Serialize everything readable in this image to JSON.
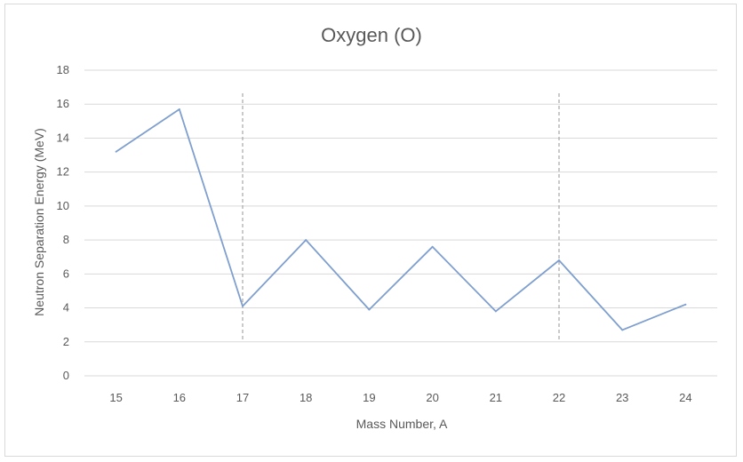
{
  "chart_data": {
    "type": "line",
    "title": "Oxygen (O)",
    "xlabel": "Mass Number, A",
    "ylabel": "Neutron Separation Energy (MeV)",
    "x": [
      15,
      16,
      17,
      18,
      19,
      20,
      21,
      22,
      23,
      24
    ],
    "series": [
      {
        "values": [
          13.2,
          15.7,
          4.1,
          8.0,
          3.9,
          7.6,
          3.8,
          6.8,
          2.7,
          4.2
        ]
      }
    ],
    "ylim": [
      0,
      18
    ],
    "yticks": [
      0,
      2,
      4,
      6,
      8,
      10,
      12,
      14,
      16,
      18
    ],
    "grid": true,
    "line_color": "#7f9fcf",
    "vertical_markers": [
      17,
      22
    ],
    "marker_color": "#a6a6a6"
  }
}
